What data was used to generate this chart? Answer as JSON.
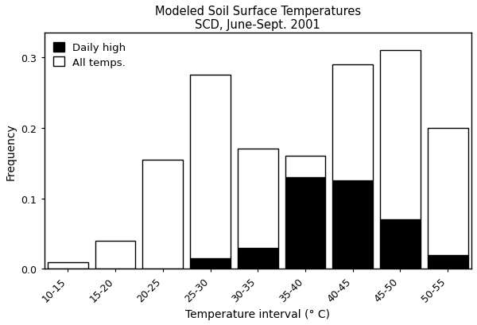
{
  "categories": [
    "10-15",
    "15-20",
    "20-25",
    "25-30",
    "30-35",
    "35-40",
    "40-45",
    "45-50",
    "50-55"
  ],
  "all_temps": [
    0.01,
    0.04,
    0.155,
    0.275,
    0.17,
    0.16,
    0.29,
    0.31,
    0.2
  ],
  "daily_high": [
    0.0,
    0.0,
    0.0,
    0.015,
    0.03,
    0.13,
    0.125,
    0.07,
    0.02
  ],
  "all_temps_color": "#ffffff",
  "daily_high_color": "#000000",
  "edge_color": "#000000",
  "title_line1": "Modeled Soil Surface Temperatures",
  "title_line2": "SCD, June-Sept. 2001",
  "xlabel": "Temperature interval (° C)",
  "ylabel": "Frequency",
  "ylim": [
    0,
    0.335
  ],
  "yticks": [
    0.0,
    0.1,
    0.2,
    0.3
  ],
  "background_color": "#ffffff",
  "legend_daily_high": "Daily high",
  "legend_all_temps": "All temps.",
  "bar_width": 0.85,
  "title_fontsize": 10.5,
  "label_fontsize": 10,
  "tick_fontsize": 9,
  "legend_fontsize": 9.5
}
